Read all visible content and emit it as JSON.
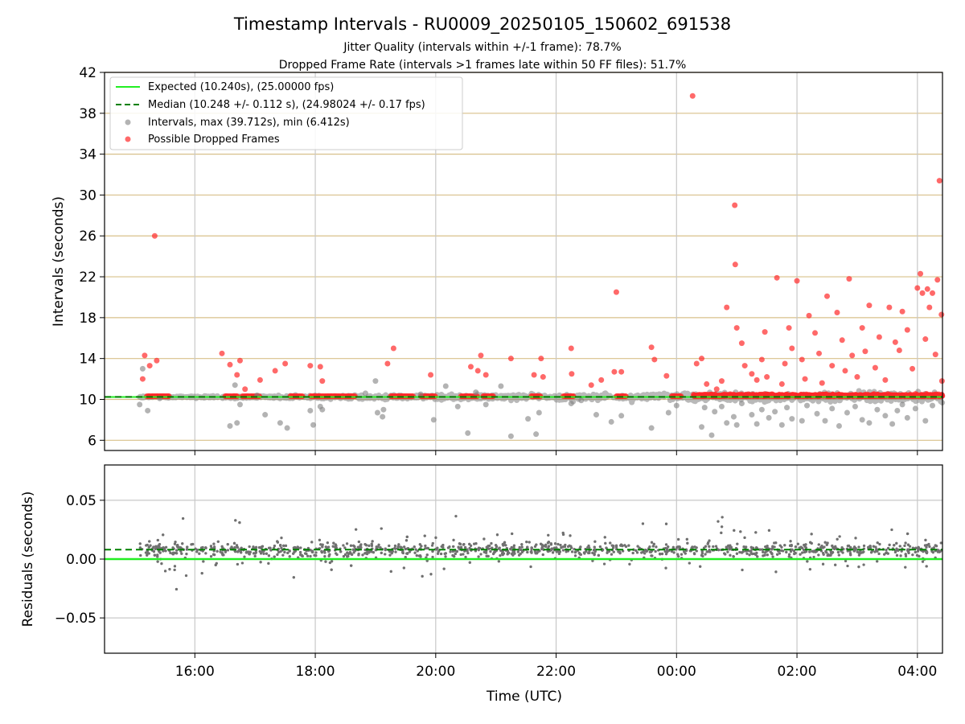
{
  "figure": {
    "title": "Timestamp Intervals - RU0009_20250105_150602_691538",
    "subtitle_1": "Jitter Quality (intervals within +/-1 frame): 78.7%",
    "subtitle_2": "Dropped Frame Rate (intervals >1 frames late within 50 FF files): 51.7%"
  },
  "colors": {
    "expected": "#22ee22",
    "median": "#008000",
    "intervals": "#808080",
    "dropped": "#ff2a2a",
    "hgrid": "#d8c08a",
    "vgrid": "#c8c8c8"
  },
  "chart_data": [
    {
      "type": "scatter",
      "title": "Timestamp Intervals - RU0009_20250105_150602_691538",
      "ylabel": "Intervals (seconds)",
      "xlabel": "",
      "x_axis": {
        "type": "time",
        "start": "2025-01-05T14:30:00Z",
        "end": "2025-01-06T04:25:00Z",
        "ticks": [
          "2025-01-05T16:00:00Z",
          "2025-01-05T18:00:00Z",
          "2025-01-05T20:00:00Z",
          "2025-01-05T22:00:00Z",
          "2025-01-06T00:00:00Z",
          "2025-01-06T02:00:00Z",
          "2025-01-06T04:00:00Z"
        ],
        "tick_labels": []
      },
      "ylim": [
        5,
        42
      ],
      "yticks": [
        6,
        10,
        14,
        18,
        22,
        26,
        30,
        34,
        38,
        42
      ],
      "grid": true,
      "legend_position": "top-left",
      "legend": [
        "Expected (10.240s), (25.00000 fps)",
        "Median (10.248 +/- 0.112 s), (24.98024 +/- 0.17 fps)",
        "Intervals, max (39.712s), min (6.412s)",
        "Possible Dropped Frames"
      ],
      "series": [
        {
          "name": "Expected (10.240s), (25.00000 fps)",
          "kind": "hline",
          "y": 10.24
        },
        {
          "name": "Median (10.248 +/- 0.112 s), (24.98024 +/- 0.17 fps)",
          "kind": "hline",
          "y": 10.248
        },
        {
          "name": "Intervals, max (39.712s), min (6.412s)",
          "kind": "scatter",
          "points": [
            [
              "2025-01-05T15:05:00Z",
              9.5
            ],
            [
              "2025-01-05T15:08:00Z",
              13.0
            ],
            [
              "2025-01-05T15:13:00Z",
              8.9
            ],
            [
              "2025-01-05T15:25:00Z",
              10.1
            ],
            [
              "2025-01-05T16:35:00Z",
              7.4
            ],
            [
              "2025-01-05T16:42:00Z",
              7.7
            ],
            [
              "2025-01-05T16:40:00Z",
              11.4
            ],
            [
              "2025-01-05T16:45:00Z",
              9.5
            ],
            [
              "2025-01-05T17:02:00Z",
              10.4
            ],
            [
              "2025-01-05T17:10:00Z",
              8.5
            ],
            [
              "2025-01-05T17:25:00Z",
              7.7
            ],
            [
              "2025-01-05T17:32:00Z",
              7.2
            ],
            [
              "2025-01-05T17:55:00Z",
              8.9
            ],
            [
              "2025-01-05T17:58:00Z",
              7.5
            ],
            [
              "2025-01-05T18:05:00Z",
              9.3
            ],
            [
              "2025-01-05T18:07:00Z",
              9.0
            ],
            [
              "2025-01-05T18:50:00Z",
              10.6
            ],
            [
              "2025-01-05T19:00:00Z",
              11.8
            ],
            [
              "2025-01-05T19:02:00Z",
              8.7
            ],
            [
              "2025-01-05T19:07:00Z",
              8.3
            ],
            [
              "2025-01-05T19:08:00Z",
              9.0
            ],
            [
              "2025-01-05T19:45:00Z",
              10.5
            ],
            [
              "2025-01-05T19:58:00Z",
              8.0
            ],
            [
              "2025-01-05T20:10:00Z",
              11.3
            ],
            [
              "2025-01-05T20:22:00Z",
              9.3
            ],
            [
              "2025-01-05T20:32:00Z",
              6.7
            ],
            [
              "2025-01-05T20:40:00Z",
              10.7
            ],
            [
              "2025-01-05T20:50:00Z",
              9.5
            ],
            [
              "2025-01-05T21:05:00Z",
              11.3
            ],
            [
              "2025-01-05T21:15:00Z",
              6.4
            ],
            [
              "2025-01-05T21:32:00Z",
              8.1
            ],
            [
              "2025-01-05T21:40:00Z",
              6.6
            ],
            [
              "2025-01-05T21:43:00Z",
              8.7
            ],
            [
              "2025-01-05T22:15:00Z",
              9.6
            ],
            [
              "2025-01-05T22:25:00Z",
              9.9
            ],
            [
              "2025-01-05T22:40:00Z",
              8.5
            ],
            [
              "2025-01-05T22:55:00Z",
              7.8
            ],
            [
              "2025-01-05T23:05:00Z",
              8.4
            ],
            [
              "2025-01-05T23:35:00Z",
              7.2
            ],
            [
              "2025-01-05T23:52:00Z",
              8.7
            ],
            [
              "2025-01-06T00:00:00Z",
              9.4
            ],
            [
              "2025-01-06T00:25:00Z",
              7.3
            ],
            [
              "2025-01-06T00:28:00Z",
              9.2
            ],
            [
              "2025-01-06T00:35:00Z",
              6.5
            ],
            [
              "2025-01-06T00:38:00Z",
              8.8
            ],
            [
              "2025-01-06T00:45:00Z",
              9.3
            ],
            [
              "2025-01-06T00:50:00Z",
              7.7
            ],
            [
              "2025-01-06T00:57:00Z",
              8.3
            ],
            [
              "2025-01-06T01:00:00Z",
              7.5
            ],
            [
              "2025-01-06T01:05:00Z",
              9.6
            ],
            [
              "2025-01-06T01:15:00Z",
              8.5
            ],
            [
              "2025-01-06T01:20:00Z",
              7.6
            ],
            [
              "2025-01-06T01:25:00Z",
              9.0
            ],
            [
              "2025-01-06T01:32:00Z",
              8.2
            ],
            [
              "2025-01-06T01:38:00Z",
              8.8
            ],
            [
              "2025-01-06T01:45:00Z",
              7.5
            ],
            [
              "2025-01-06T01:50:00Z",
              9.2
            ],
            [
              "2025-01-06T01:55:00Z",
              8.1
            ],
            [
              "2025-01-06T02:05:00Z",
              7.9
            ],
            [
              "2025-01-06T02:10:00Z",
              9.4
            ],
            [
              "2025-01-06T02:20:00Z",
              8.6
            ],
            [
              "2025-01-06T02:28:00Z",
              7.9
            ],
            [
              "2025-01-06T02:35:00Z",
              9.1
            ],
            [
              "2025-01-06T02:42:00Z",
              7.4
            ],
            [
              "2025-01-06T02:50:00Z",
              8.7
            ],
            [
              "2025-01-06T02:58:00Z",
              9.3
            ],
            [
              "2025-01-06T03:05:00Z",
              8.0
            ],
            [
              "2025-01-06T03:12:00Z",
              7.7
            ],
            [
              "2025-01-06T03:20:00Z",
              9.0
            ],
            [
              "2025-01-06T03:28:00Z",
              8.4
            ],
            [
              "2025-01-06T03:35:00Z",
              7.6
            ],
            [
              "2025-01-06T03:40:00Z",
              8.9
            ],
            [
              "2025-01-06T03:45:00Z",
              9.5
            ],
            [
              "2025-01-06T03:50:00Z",
              8.2
            ],
            [
              "2025-01-06T03:58:00Z",
              9.1
            ],
            [
              "2025-01-06T04:08:00Z",
              7.9
            ],
            [
              "2025-01-06T04:15:00Z",
              9.4
            ]
          ]
        },
        {
          "name": "Possible Dropped Frames",
          "kind": "scatter",
          "points": [
            [
              "2025-01-05T15:08:00Z",
              12.0
            ],
            [
              "2025-01-05T15:10:00Z",
              14.3
            ],
            [
              "2025-01-05T15:15:00Z",
              13.3
            ],
            [
              "2025-01-05T15:20:00Z",
              26.0
            ],
            [
              "2025-01-05T15:22:00Z",
              13.8
            ],
            [
              "2025-01-05T16:27:00Z",
              14.5
            ],
            [
              "2025-01-05T16:35:00Z",
              13.4
            ],
            [
              "2025-01-05T16:42:00Z",
              12.4
            ],
            [
              "2025-01-05T16:45:00Z",
              13.8
            ],
            [
              "2025-01-05T16:50:00Z",
              11.0
            ],
            [
              "2025-01-05T17:05:00Z",
              11.9
            ],
            [
              "2025-01-05T17:20:00Z",
              12.8
            ],
            [
              "2025-01-05T17:30:00Z",
              13.5
            ],
            [
              "2025-01-05T17:55:00Z",
              13.3
            ],
            [
              "2025-01-05T18:05:00Z",
              13.2
            ],
            [
              "2025-01-05T18:07:00Z",
              11.8
            ],
            [
              "2025-01-05T19:12:00Z",
              13.5
            ],
            [
              "2025-01-05T19:18:00Z",
              15.0
            ],
            [
              "2025-01-05T19:55:00Z",
              12.4
            ],
            [
              "2025-01-05T20:35:00Z",
              13.2
            ],
            [
              "2025-01-05T20:42:00Z",
              12.8
            ],
            [
              "2025-01-05T20:45:00Z",
              14.3
            ],
            [
              "2025-01-05T20:50:00Z",
              12.4
            ],
            [
              "2025-01-05T21:15:00Z",
              14.0
            ],
            [
              "2025-01-05T21:38:00Z",
              12.4
            ],
            [
              "2025-01-05T21:45:00Z",
              14.0
            ],
            [
              "2025-01-05T21:47:00Z",
              12.2
            ],
            [
              "2025-01-05T22:15:00Z",
              15.0
            ],
            [
              "2025-01-05T22:15:30Z",
              12.5
            ],
            [
              "2025-01-05T22:35:00Z",
              11.4
            ],
            [
              "2025-01-05T22:45:00Z",
              11.9
            ],
            [
              "2025-01-05T22:58:00Z",
              12.7
            ],
            [
              "2025-01-05T23:00:00Z",
              20.5
            ],
            [
              "2025-01-05T23:05:00Z",
              12.7
            ],
            [
              "2025-01-05T23:35:00Z",
              15.1
            ],
            [
              "2025-01-05T23:38:00Z",
              13.9
            ],
            [
              "2025-01-05T23:50:00Z",
              12.3
            ],
            [
              "2025-01-06T00:16:00Z",
              39.7
            ],
            [
              "2025-01-06T00:20:00Z",
              13.5
            ],
            [
              "2025-01-06T00:25:00Z",
              14.0
            ],
            [
              "2025-01-06T00:30:00Z",
              11.5
            ],
            [
              "2025-01-06T00:40:00Z",
              11.0
            ],
            [
              "2025-01-06T00:45:00Z",
              11.8
            ],
            [
              "2025-01-06T00:50:00Z",
              19.0
            ],
            [
              "2025-01-06T00:58:00Z",
              29.0
            ],
            [
              "2025-01-06T00:58:30Z",
              23.2
            ],
            [
              "2025-01-06T01:00:00Z",
              17.0
            ],
            [
              "2025-01-06T01:05:00Z",
              15.5
            ],
            [
              "2025-01-06T01:08:00Z",
              13.3
            ],
            [
              "2025-01-06T01:15:00Z",
              12.5
            ],
            [
              "2025-01-06T01:20:00Z",
              11.9
            ],
            [
              "2025-01-06T01:25:00Z",
              13.9
            ],
            [
              "2025-01-06T01:28:00Z",
              16.6
            ],
            [
              "2025-01-06T01:30:00Z",
              12.2
            ],
            [
              "2025-01-06T01:40:00Z",
              21.9
            ],
            [
              "2025-01-06T01:45:00Z",
              11.5
            ],
            [
              "2025-01-06T01:48:00Z",
              13.5
            ],
            [
              "2025-01-06T01:52:00Z",
              17.0
            ],
            [
              "2025-01-06T01:55:00Z",
              15.0
            ],
            [
              "2025-01-06T02:00:00Z",
              21.6
            ],
            [
              "2025-01-06T02:05:00Z",
              13.9
            ],
            [
              "2025-01-06T02:08:00Z",
              12.0
            ],
            [
              "2025-01-06T02:12:00Z",
              18.2
            ],
            [
              "2025-01-06T02:18:00Z",
              16.5
            ],
            [
              "2025-01-06T02:22:00Z",
              14.5
            ],
            [
              "2025-01-06T02:25:00Z",
              11.6
            ],
            [
              "2025-01-06T02:30:00Z",
              20.1
            ],
            [
              "2025-01-06T02:35:00Z",
              13.3
            ],
            [
              "2025-01-06T02:40:00Z",
              18.5
            ],
            [
              "2025-01-06T02:45:00Z",
              15.8
            ],
            [
              "2025-01-06T02:48:00Z",
              12.8
            ],
            [
              "2025-01-06T02:52:00Z",
              21.8
            ],
            [
              "2025-01-06T02:55:00Z",
              14.3
            ],
            [
              "2025-01-06T03:00:00Z",
              12.2
            ],
            [
              "2025-01-06T03:05:00Z",
              17.0
            ],
            [
              "2025-01-06T03:08:00Z",
              14.7
            ],
            [
              "2025-01-06T03:12:00Z",
              19.2
            ],
            [
              "2025-01-06T03:18:00Z",
              13.1
            ],
            [
              "2025-01-06T03:22:00Z",
              16.1
            ],
            [
              "2025-01-06T03:28:00Z",
              11.9
            ],
            [
              "2025-01-06T03:32:00Z",
              19.0
            ],
            [
              "2025-01-06T03:38:00Z",
              15.6
            ],
            [
              "2025-01-06T03:42:00Z",
              14.8
            ],
            [
              "2025-01-06T03:45:00Z",
              18.6
            ],
            [
              "2025-01-06T03:50:00Z",
              16.8
            ],
            [
              "2025-01-06T03:55:00Z",
              13.0
            ],
            [
              "2025-01-06T04:00:00Z",
              20.9
            ],
            [
              "2025-01-06T04:03:00Z",
              22.3
            ],
            [
              "2025-01-06T04:05:00Z",
              20.4
            ],
            [
              "2025-01-06T04:08:00Z",
              15.9
            ],
            [
              "2025-01-06T04:10:00Z",
              20.8
            ],
            [
              "2025-01-06T04:12:00Z",
              19.0
            ],
            [
              "2025-01-06T04:15:00Z",
              20.4
            ],
            [
              "2025-01-06T04:18:00Z",
              14.4
            ],
            [
              "2025-01-06T04:20:00Z",
              21.7
            ],
            [
              "2025-01-06T04:22:00Z",
              31.4
            ],
            [
              "2025-01-06T04:24:00Z",
              18.3
            ],
            [
              "2025-01-06T04:24:30Z",
              11.8
            ]
          ]
        }
      ]
    },
    {
      "type": "scatter",
      "title": "",
      "ylabel": "Residuals (seconds)",
      "xlabel": "Time (UTC)",
      "x_axis": {
        "type": "time",
        "start": "2025-01-05T14:30:00Z",
        "end": "2025-01-06T04:25:00Z",
        "ticks": [
          "2025-01-05T16:00:00Z",
          "2025-01-05T18:00:00Z",
          "2025-01-05T20:00:00Z",
          "2025-01-05T22:00:00Z",
          "2025-01-06T00:00:00Z",
          "2025-01-06T02:00:00Z",
          "2025-01-06T04:00:00Z"
        ],
        "tick_labels": [
          "16:00",
          "18:00",
          "20:00",
          "22:00",
          "00:00",
          "02:00",
          "04:00"
        ]
      },
      "ylim": [
        -0.08,
        0.08
      ],
      "yticks": [
        -0.05,
        0.0,
        0.05
      ],
      "ytick_labels": [
        "−0.05",
        "0.00",
        "0.05"
      ],
      "grid": true,
      "series": [
        {
          "name": "",
          "kind": "hline",
          "y": 0.0
        },
        {
          "name": "",
          "kind": "hline",
          "y": 0.008
        },
        {
          "name": "",
          "kind": "scatter",
          "points": []
        }
      ]
    }
  ]
}
